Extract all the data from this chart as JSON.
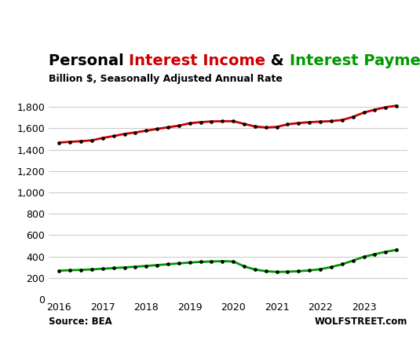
{
  "title_parts": [
    {
      "text": "Personal ",
      "color": "#000000",
      "bold": true
    },
    {
      "text": "Interest Income",
      "color": "#cc0000",
      "bold": true
    },
    {
      "text": " & ",
      "color": "#000000",
      "bold": true
    },
    {
      "text": "Interest Payments",
      "color": "#009900",
      "bold": true
    }
  ],
  "subtitle": "Billion $, Seasonally Adjusted Annual Rate",
  "source_left": "Source: BEA",
  "source_right": "WOLFSTREET.com",
  "ylim": [
    0,
    1900
  ],
  "yticks": [
    0,
    200,
    400,
    600,
    800,
    1000,
    1200,
    1400,
    1600,
    1800
  ],
  "interest_income": {
    "color": "#cc0000",
    "x": [
      2016.0,
      2016.25,
      2016.5,
      2016.75,
      2017.0,
      2017.25,
      2017.5,
      2017.75,
      2018.0,
      2018.25,
      2018.5,
      2018.75,
      2019.0,
      2019.25,
      2019.5,
      2019.75,
      2020.0,
      2020.25,
      2020.5,
      2020.75,
      2021.0,
      2021.25,
      2021.5,
      2021.75,
      2022.0,
      2022.25,
      2022.5,
      2022.75,
      2023.0,
      2023.25,
      2023.5,
      2023.75
    ],
    "y": [
      1467,
      1474,
      1480,
      1488,
      1510,
      1528,
      1548,
      1562,
      1578,
      1595,
      1610,
      1625,
      1648,
      1658,
      1665,
      1667,
      1667,
      1642,
      1618,
      1608,
      1614,
      1638,
      1650,
      1658,
      1663,
      1668,
      1678,
      1708,
      1748,
      1775,
      1798,
      1812
    ]
  },
  "interest_payments": {
    "color": "#009900",
    "x": [
      2016.0,
      2016.25,
      2016.5,
      2016.75,
      2017.0,
      2017.25,
      2017.5,
      2017.75,
      2018.0,
      2018.25,
      2018.5,
      2018.75,
      2019.0,
      2019.25,
      2019.5,
      2019.75,
      2020.0,
      2020.25,
      2020.5,
      2020.75,
      2021.0,
      2021.25,
      2021.5,
      2021.75,
      2022.0,
      2022.25,
      2022.5,
      2022.75,
      2023.0,
      2023.25,
      2023.5,
      2023.75
    ],
    "y": [
      268,
      272,
      275,
      280,
      286,
      292,
      298,
      305,
      312,
      320,
      328,
      336,
      344,
      350,
      354,
      357,
      354,
      308,
      278,
      263,
      256,
      258,
      263,
      270,
      282,
      302,
      328,
      362,
      398,
      422,
      445,
      462
    ]
  },
  "xlim": [
    2015.75,
    2024.0
  ],
  "xtick_positions": [
    2016,
    2017,
    2018,
    2019,
    2020,
    2021,
    2022,
    2023
  ],
  "xtick_labels": [
    "2016",
    "2017",
    "2018",
    "2019",
    "2020",
    "2021",
    "2022",
    "2023"
  ],
  "background_color": "#ffffff",
  "grid_color": "#cccccc",
  "marker": "o",
  "marker_size": 2.8,
  "linewidth": 2.0,
  "title_fontsize": 14,
  "subtitle_fontsize": 9,
  "tick_fontsize": 9,
  "source_fontsize": 8.5
}
